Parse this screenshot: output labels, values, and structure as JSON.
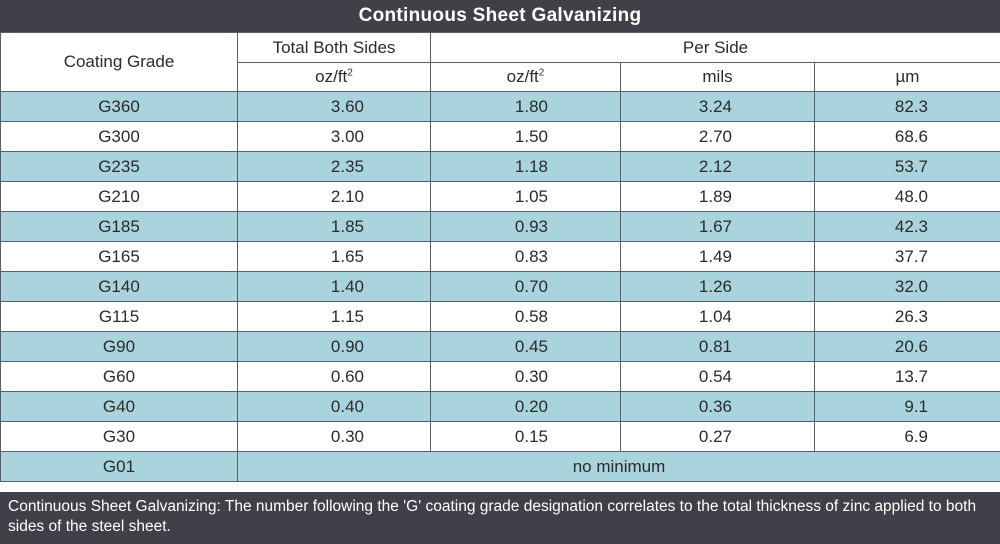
{
  "title": "Continuous Sheet Galvanizing",
  "headers": {
    "coating_grade": "Coating Grade",
    "total_both_sides": "Total Both Sides",
    "per_side": "Per Side",
    "unit_ozft": "oz/ft",
    "unit_sup": "2",
    "unit_mils": "mils",
    "unit_um": "µm"
  },
  "rows": [
    {
      "grade": "G360",
      "total": "3.60",
      "oz": "1.80",
      "mils": "3.24",
      "um": "82.3"
    },
    {
      "grade": "G300",
      "total": "3.00",
      "oz": "1.50",
      "mils": "2.70",
      "um": "68.6"
    },
    {
      "grade": "G235",
      "total": "2.35",
      "oz": "1.18",
      "mils": "2.12",
      "um": "53.7"
    },
    {
      "grade": "G210",
      "total": "2.10",
      "oz": "1.05",
      "mils": "1.89",
      "um": "48.0"
    },
    {
      "grade": "G185",
      "total": "1.85",
      "oz": "0.93",
      "mils": "1.67",
      "um": "42.3"
    },
    {
      "grade": "G165",
      "total": "1.65",
      "oz": "0.83",
      "mils": "1.49",
      "um": "37.7"
    },
    {
      "grade": "G140",
      "total": "1.40",
      "oz": "0.70",
      "mils": "1.26",
      "um": "32.0"
    },
    {
      "grade": "G115",
      "total": "1.15",
      "oz": "0.58",
      "mils": "1.04",
      "um": "26.3"
    },
    {
      "grade": "G90",
      "total": "0.90",
      "oz": "0.45",
      "mils": "0.81",
      "um": "20.6"
    },
    {
      "grade": "G60",
      "total": "0.60",
      "oz": "0.30",
      "mils": "0.54",
      "um": "13.7"
    },
    {
      "grade": "G40",
      "total": "0.40",
      "oz": "0.20",
      "mils": "0.36",
      "um": "9.1"
    },
    {
      "grade": "G30",
      "total": "0.30",
      "oz": "0.15",
      "mils": "0.27",
      "um": "6.9"
    }
  ],
  "last_row": {
    "grade": "G01",
    "note": "no minimum"
  },
  "footer": "Continuous Sheet Galvanizing: The number following the 'G' coating grade designation correlates to the total thickness of zinc applied to both sides of the steel sheet.",
  "colors": {
    "header_bar": "#414049",
    "stripe": "#a9d3dd",
    "border": "#5d5d66"
  }
}
